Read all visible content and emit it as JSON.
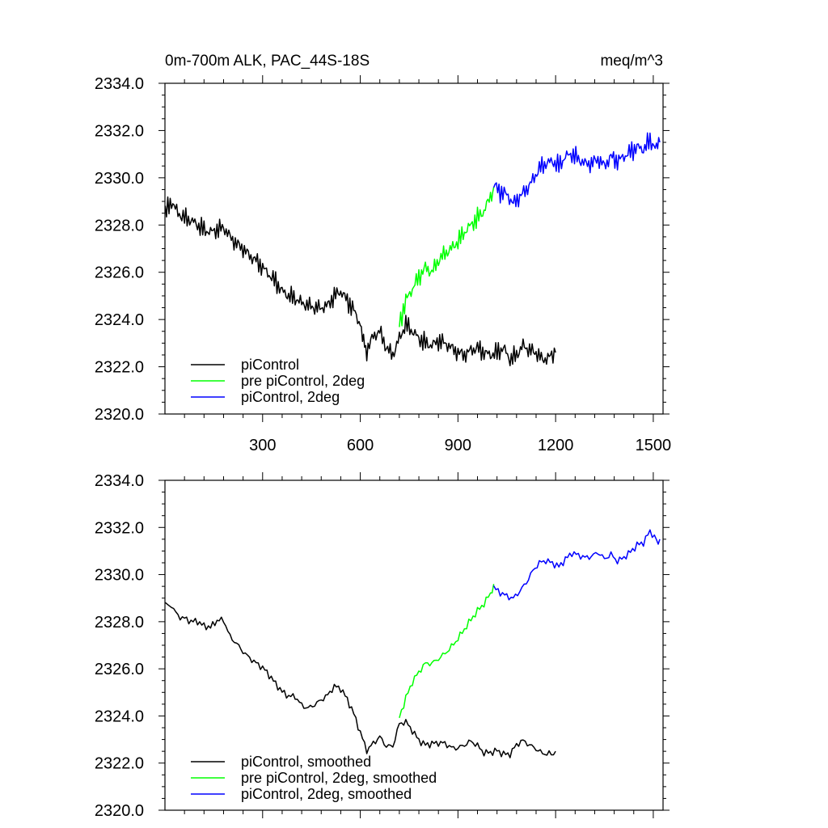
{
  "chart_data": [
    {
      "type": "line",
      "title_left": "0m-700m ALK, PAC_44S-18S",
      "title_right": "meq/m^3",
      "xlim": [
        0,
        1530
      ],
      "ylim": [
        2320,
        2334
      ],
      "xticks": [
        300,
        600,
        900,
        1200,
        1500
      ],
      "xtick_labels": [
        "300",
        "600",
        "900",
        "1200",
        "1500"
      ],
      "yticks": [
        2320,
        2322,
        2324,
        2326,
        2328,
        2330,
        2332,
        2334
      ],
      "ytick_labels": [
        "2320.0",
        "2322.0",
        "2324.0",
        "2326.0",
        "2328.0",
        "2330.0",
        "2332.0",
        "2334.0"
      ],
      "legend": "bottom-left",
      "grid": false,
      "series": [
        {
          "name": "piControl",
          "color": "#000000",
          "x": [
            1,
            20,
            40,
            60,
            80,
            100,
            120,
            140,
            160,
            180,
            200,
            220,
            240,
            260,
            280,
            300,
            320,
            340,
            360,
            380,
            400,
            420,
            440,
            460,
            480,
            500,
            520,
            540,
            560,
            580,
            600,
            610,
            620,
            640,
            660,
            680,
            700,
            720,
            740,
            760,
            780,
            800,
            820,
            840,
            860,
            880,
            900,
            920,
            940,
            960,
            980,
            1000,
            1020,
            1040,
            1060,
            1080,
            1100,
            1120,
            1140,
            1160,
            1180,
            1200
          ],
          "y": [
            2328.5,
            2329.0,
            2328.5,
            2328.3,
            2328.2,
            2328.0,
            2327.8,
            2327.7,
            2327.8,
            2327.9,
            2327.5,
            2327.2,
            2327.0,
            2326.7,
            2326.5,
            2326.2,
            2325.9,
            2325.6,
            2325.2,
            2325.0,
            2324.9,
            2324.7,
            2324.6,
            2324.5,
            2324.5,
            2324.6,
            2325.0,
            2325.2,
            2324.8,
            2324.4,
            2323.8,
            2323.0,
            2322.7,
            2323.3,
            2323.5,
            2322.8,
            2322.5,
            2323.2,
            2323.8,
            2323.5,
            2323.2,
            2323.0,
            2322.9,
            2323.1,
            2323.0,
            2322.8,
            2322.6,
            2322.5,
            2322.7,
            2322.8,
            2322.6,
            2322.5,
            2322.6,
            2322.8,
            2322.3,
            2322.5,
            2322.9,
            2322.7,
            2322.6,
            2322.3,
            2322.4,
            2322.6
          ]
        },
        {
          "name": "pre piControl, 2deg",
          "color": "#00ff00",
          "x": [
            720,
            740,
            760,
            780,
            800,
            820,
            840,
            860,
            880,
            900,
            920,
            940,
            960,
            980,
            1000,
            1010
          ],
          "y": [
            2323.8,
            2324.8,
            2325.3,
            2325.8,
            2326.2,
            2326.0,
            2326.5,
            2326.8,
            2327.0,
            2327.3,
            2327.7,
            2328.0,
            2328.3,
            2328.6,
            2329.2,
            2329.6
          ]
        },
        {
          "name": "piControl, 2deg",
          "color": "#0000ff",
          "x": [
            1010,
            1030,
            1050,
            1070,
            1090,
            1110,
            1130,
            1150,
            1170,
            1190,
            1210,
            1230,
            1250,
            1270,
            1290,
            1310,
            1330,
            1350,
            1370,
            1390,
            1410,
            1430,
            1450,
            1470,
            1490,
            1510,
            1520
          ],
          "y": [
            2329.7,
            2329.4,
            2329.3,
            2328.9,
            2329.2,
            2329.5,
            2329.9,
            2330.4,
            2330.6,
            2330.7,
            2330.5,
            2330.9,
            2331.0,
            2330.8,
            2330.6,
            2330.6,
            2330.8,
            2330.5,
            2330.9,
            2330.7,
            2330.9,
            2331.1,
            2331.3,
            2331.2,
            2331.6,
            2331.2,
            2331.5
          ]
        }
      ]
    },
    {
      "type": "line",
      "xlim": [
        0,
        1530
      ],
      "ylim": [
        2320,
        2334
      ],
      "xticks": [
        300,
        600,
        900,
        1200,
        1500
      ],
      "yticks": [
        2320,
        2322,
        2324,
        2326,
        2328,
        2330,
        2332,
        2334
      ],
      "ytick_labels": [
        "2320.0",
        "2322.0",
        "2324.0",
        "2326.0",
        "2328.0",
        "2330.0",
        "2332.0",
        "2334.0"
      ],
      "legend": "bottom-left",
      "grid": false,
      "series": [
        {
          "name": "piControl, smoothed",
          "color": "#000000",
          "x": [
            1,
            20,
            40,
            60,
            80,
            100,
            120,
            140,
            160,
            180,
            200,
            220,
            240,
            260,
            280,
            300,
            320,
            340,
            360,
            380,
            400,
            420,
            440,
            460,
            480,
            500,
            520,
            540,
            560,
            580,
            600,
            620,
            640,
            660,
            680,
            700,
            720,
            740,
            760,
            780,
            800,
            820,
            840,
            860,
            880,
            900,
            920,
            940,
            960,
            980,
            1000,
            1020,
            1040,
            1060,
            1080,
            1100,
            1120,
            1140,
            1160,
            1180,
            1200
          ],
          "y": [
            2328.6,
            2328.8,
            2328.4,
            2328.3,
            2328.1,
            2328.0,
            2327.7,
            2327.6,
            2327.9,
            2328.0,
            2327.4,
            2327.2,
            2326.9,
            2326.6,
            2326.3,
            2326.0,
            2325.6,
            2325.2,
            2324.9,
            2324.8,
            2324.9,
            2324.6,
            2324.5,
            2324.6,
            2324.7,
            2324.8,
            2325.1,
            2325.0,
            2324.6,
            2324.1,
            2323.4,
            2322.7,
            2323.0,
            2323.2,
            2322.7,
            2322.6,
            2323.5,
            2323.6,
            2323.3,
            2323.0,
            2322.9,
            2323.0,
            2323.0,
            2322.9,
            2322.6,
            2322.5,
            2322.6,
            2322.8,
            2322.7,
            2322.5,
            2322.6,
            2322.7,
            2322.5,
            2322.4,
            2322.7,
            2322.8,
            2322.6,
            2322.5,
            2322.4,
            2322.5,
            2322.5
          ]
        },
        {
          "name": "pre piControl, 2deg, smoothed",
          "color": "#00ff00",
          "x": [
            720,
            740,
            760,
            780,
            800,
            820,
            840,
            860,
            880,
            900,
            920,
            940,
            960,
            980,
            1000,
            1010
          ],
          "y": [
            2324.0,
            2324.7,
            2325.3,
            2325.7,
            2326.1,
            2326.2,
            2326.5,
            2326.8,
            2327.1,
            2327.4,
            2327.7,
            2328.0,
            2328.3,
            2328.6,
            2329.1,
            2329.6
          ]
        },
        {
          "name": "piControl, 2deg, smoothed",
          "color": "#0000ff",
          "x": [
            1010,
            1030,
            1050,
            1070,
            1090,
            1110,
            1130,
            1150,
            1170,
            1190,
            1210,
            1230,
            1250,
            1270,
            1290,
            1310,
            1330,
            1350,
            1370,
            1390,
            1410,
            1430,
            1450,
            1470,
            1490,
            1510,
            1520
          ],
          "y": [
            2329.6,
            2329.4,
            2329.2,
            2329.0,
            2329.2,
            2329.5,
            2330.0,
            2330.4,
            2330.6,
            2330.6,
            2330.5,
            2330.8,
            2331.0,
            2330.8,
            2330.6,
            2330.6,
            2330.8,
            2330.6,
            2330.9,
            2330.7,
            2330.9,
            2331.1,
            2331.3,
            2331.3,
            2331.7,
            2331.3,
            2331.5
          ]
        }
      ]
    }
  ]
}
